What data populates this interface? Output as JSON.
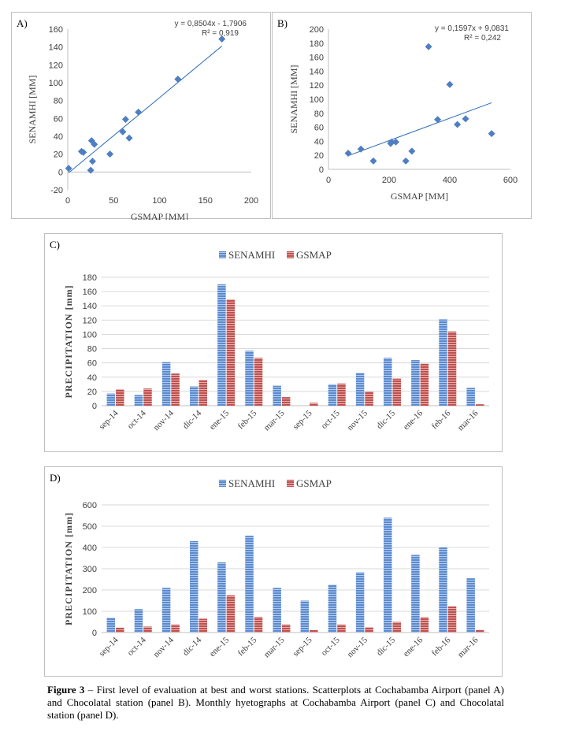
{
  "caption": {
    "label": "Figure 3",
    "text": " – First level of evaluation at best and worst stations. Scatterplots at Cochabamba Airport (panel A) and Chocolatal station (panel B). Monthly hyetographs at Cochabamba Airport (panel C) and Chocolatal station (panel D)."
  },
  "colors": {
    "senamhi": "#5b8bd0",
    "gsmap": "#c0504d",
    "marker": "#4f7ec2",
    "trend": "#2e6db5",
    "grid": "#d9d9d9"
  },
  "chart_data": [
    {
      "panel": "A)",
      "type": "scatter",
      "xlabel": "GSMAP [MM]",
      "ylabel": "SENAMHI [MM]",
      "xlim": [
        0,
        200
      ],
      "ylim": [
        -20,
        160
      ],
      "xticks": [
        0,
        50,
        100,
        150,
        200
      ],
      "yticks": [
        -20,
        0,
        20,
        40,
        60,
        80,
        100,
        120,
        140,
        160
      ],
      "grid": false,
      "points": [
        [
          1,
          4
        ],
        [
          15,
          23
        ],
        [
          17,
          22
        ],
        [
          25,
          2
        ],
        [
          26,
          35
        ],
        [
          27,
          12
        ],
        [
          29,
          31
        ],
        [
          46,
          20
        ],
        [
          60,
          45
        ],
        [
          63,
          59
        ],
        [
          67,
          38
        ],
        [
          77,
          67
        ],
        [
          120,
          104
        ],
        [
          168,
          149
        ]
      ],
      "trendline": {
        "slope": 0.8504,
        "intercept": -1.7906,
        "x_range": [
          1,
          168
        ]
      },
      "equation": "y = 0,8504x - 1,7906",
      "r2": "R² = 0,919"
    },
    {
      "panel": "B)",
      "type": "scatter",
      "xlabel": "GSMAP [MM]",
      "ylabel": "SENAMHI [MM]",
      "xlim": [
        0,
        600
      ],
      "ylim": [
        0,
        200
      ],
      "xticks": [
        0,
        200,
        400,
        600
      ],
      "yticks": [
        0,
        20,
        40,
        60,
        80,
        100,
        120,
        140,
        160,
        180,
        200
      ],
      "grid": false,
      "points": [
        [
          65,
          23
        ],
        [
          107,
          29
        ],
        [
          148,
          12
        ],
        [
          205,
          37
        ],
        [
          208,
          39
        ],
        [
          222,
          39
        ],
        [
          255,
          12
        ],
        [
          275,
          26
        ],
        [
          330,
          175
        ],
        [
          360,
          71
        ],
        [
          400,
          121
        ],
        [
          425,
          64
        ],
        [
          452,
          72
        ],
        [
          538,
          51
        ]
      ],
      "trendline": {
        "slope": 0.1597,
        "intercept": 9.0831,
        "x_range": [
          65,
          538
        ]
      },
      "equation": "y = 0,1597x + 9,0831",
      "r2": "R² = 0,242"
    },
    {
      "panel": "C)",
      "type": "bar",
      "ylabel": "PRECIPITATION [mm]",
      "ylim": [
        0,
        180
      ],
      "yticks": [
        0,
        20,
        40,
        60,
        80,
        100,
        120,
        140,
        160,
        180
      ],
      "grid": true,
      "legend": "top-center",
      "categories": [
        "sep-14",
        "oct-14",
        "nov-14",
        "dic-14",
        "ene-15",
        "feb-15",
        "mar-15",
        "sep-15",
        "oct-15",
        "nov-15",
        "dic-15",
        "ene-16",
        "feb-16",
        "mar-16"
      ],
      "series": [
        {
          "name": "SENAMHI",
          "values": [
            17,
            15,
            61,
            27,
            170,
            77,
            28,
            0,
            30,
            46,
            67,
            64,
            121,
            25
          ]
        },
        {
          "name": "GSMAP",
          "values": [
            23,
            24,
            45,
            36,
            149,
            67,
            12,
            4,
            31,
            20,
            38,
            59,
            104,
            2
          ]
        }
      ]
    },
    {
      "panel": "D)",
      "type": "bar",
      "ylabel": "PRECIPITATION [mm]",
      "ylim": [
        0,
        600
      ],
      "yticks": [
        0,
        100,
        200,
        300,
        400,
        500,
        600
      ],
      "grid": true,
      "legend": "top-center",
      "categories": [
        "sep-14",
        "oct-14",
        "nov-14",
        "dic-14",
        "ene-15",
        "feb-15",
        "mar-15",
        "sep-15",
        "oct-15",
        "nov-15",
        "dic-15",
        "ene-16",
        "feb-16",
        "mar-16"
      ],
      "series": [
        {
          "name": "SENAMHI",
          "values": [
            70,
            110,
            210,
            430,
            330,
            455,
            210,
            150,
            225,
            283,
            540,
            365,
            400,
            255
          ]
        },
        {
          "name": "GSMAP",
          "values": [
            23,
            28,
            38,
            65,
            175,
            73,
            38,
            12,
            38,
            25,
            50,
            72,
            123,
            12
          ]
        }
      ]
    }
  ]
}
